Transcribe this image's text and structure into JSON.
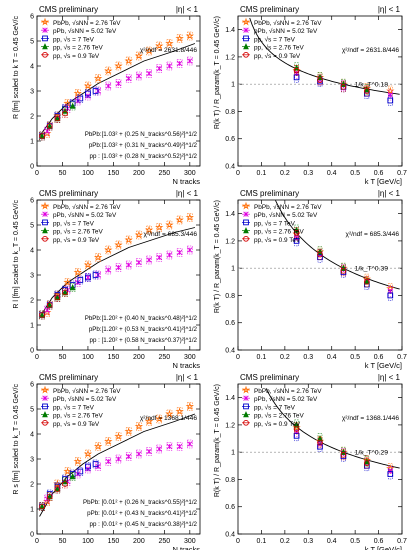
{
  "colors": {
    "PbPb": "#ff6a00",
    "pPb": "#e000e0",
    "pp7": "#0000cc",
    "pp276": "#007a00",
    "pp09": "#d40000",
    "fit": "#000000"
  },
  "chart_data": [
    {
      "type": "scatter",
      "panel": "top-left",
      "title": "CMS preliminary",
      "eta_label": "|η| < 1",
      "xlabel": "N_tracks",
      "ylabel": "R [fm] scaled to k_T = 0.45 GeV/c",
      "xlim": [
        0,
        320
      ],
      "ylim": [
        0,
        6
      ],
      "xticks": [
        0,
        50,
        100,
        150,
        200,
        250,
        300
      ],
      "yticks": [
        0,
        1,
        2,
        3,
        4,
        5,
        6
      ],
      "legend": [
        "PbPb, √sNN = 2.76 TeV",
        "pPb, √sNN = 5.02 TeV",
        "pp, √s = 7 TeV",
        "pp, √s = 2.76 TeV",
        "pp, √s = 0.9 TeV"
      ],
      "chi2": "χ²/ndf = 2631.8/446",
      "fit_lines": [
        "PbPb:[1.03² + (0.25 N_tracks^0.56)²]^1/2",
        "pPb:[1.03² + (0.31 N_tracks^0.49)²]^1/2",
        "pp : [1.03² + (0.28 N_tracks^0.52)²]^1/2"
      ],
      "series": [
        {
          "key": "PbPb",
          "x": [
            20,
            40,
            60,
            80,
            100,
            120,
            140,
            160,
            180,
            200,
            220,
            240,
            260,
            280,
            300
          ],
          "y": [
            1.3,
            2.0,
            2.5,
            2.9,
            3.2,
            3.5,
            3.8,
            4.0,
            4.2,
            4.4,
            4.6,
            4.8,
            4.9,
            5.1,
            5.2
          ]
        },
        {
          "key": "pPb",
          "x": [
            20,
            40,
            60,
            80,
            100,
            120,
            140,
            160,
            180,
            200,
            220,
            240,
            260,
            280,
            300
          ],
          "y": [
            1.4,
            1.9,
            2.3,
            2.6,
            2.8,
            3.0,
            3.2,
            3.3,
            3.5,
            3.6,
            3.7,
            3.9,
            4.0,
            4.1,
            4.2
          ]
        },
        {
          "key": "pp7",
          "x": [
            10,
            25,
            40,
            55,
            70,
            85,
            100,
            115
          ],
          "y": [
            1.2,
            1.6,
            2.0,
            2.3,
            2.5,
            2.7,
            2.9,
            3.0
          ]
        },
        {
          "key": "pp276",
          "x": [
            10,
            25,
            40,
            55,
            70
          ],
          "y": [
            1.2,
            1.6,
            1.9,
            2.2,
            2.4
          ]
        },
        {
          "key": "pp09",
          "x": [
            10,
            25,
            40,
            55
          ],
          "y": [
            1.2,
            1.6,
            1.9,
            2.1
          ]
        }
      ],
      "fit": {
        "x": [
          5,
          30,
          60,
          90,
          120,
          150,
          180,
          210,
          240,
          270,
          310
        ],
        "y": [
          1.2,
          1.9,
          2.5,
          2.9,
          3.3,
          3.6,
          3.9,
          4.2,
          4.4,
          4.6,
          4.9
        ]
      }
    },
    {
      "type": "scatter",
      "panel": "top-right",
      "title": "CMS preliminary",
      "eta_label": "|η| < 1",
      "xlabel": "k_T [GeV/c]",
      "ylabel": "R(k_T) / R_param(k_T = 0.45 GeV/c)",
      "xlim": [
        0,
        0.7
      ],
      "ylim": [
        0.4,
        1.5
      ],
      "xticks": [
        0,
        0.1,
        0.2,
        0.3,
        0.4,
        0.5,
        0.6,
        0.7
      ],
      "yticks": [
        0.4,
        0.6,
        0.8,
        1.0,
        1.2,
        1.4
      ],
      "legend": [
        "PbPb, √sNN = 2.76 TeV",
        "pPb, √sNN = 5.02 TeV",
        "pp, √s = 7 TeV",
        "pp, √s = 2.76 TeV",
        "pp, √s = 0.9 TeV"
      ],
      "chi2": "χ²/ndf = 2631.8/446",
      "kt_label": "1/k_T^0.18",
      "kt_exponent": 0.18,
      "series": [
        {
          "key": "PbPb",
          "x": [
            0.25,
            0.35,
            0.45,
            0.55,
            0.65
          ],
          "y": [
            1.1,
            1.05,
            1.0,
            0.97,
            0.95
          ]
        },
        {
          "key": "pPb",
          "x": [
            0.25,
            0.35,
            0.45,
            0.55,
            0.65
          ],
          "y": [
            1.08,
            1.03,
            0.99,
            0.95,
            0.92
          ]
        },
        {
          "key": "pp7",
          "x": [
            0.25,
            0.35,
            0.45,
            0.55,
            0.65
          ],
          "y": [
            1.05,
            1.02,
            0.98,
            0.93,
            0.88
          ]
        },
        {
          "key": "pp276",
          "x": [
            0.25,
            0.35,
            0.45,
            0.55
          ],
          "y": [
            1.12,
            1.05,
            1.0,
            0.96
          ]
        },
        {
          "key": "pp09",
          "x": [
            0.25,
            0.35,
            0.45,
            0.55
          ],
          "y": [
            1.1,
            1.03,
            0.98,
            0.95
          ]
        }
      ]
    },
    {
      "type": "scatter",
      "panel": "middle-left",
      "title": "CMS preliminary",
      "eta_label": "|η| < 1",
      "xlabel": "N_tracks",
      "ylabel": "R_l [fm] scaled to k_T = 0.45 GeV/c",
      "xlim": [
        0,
        320
      ],
      "ylim": [
        0,
        6
      ],
      "xticks": [
        0,
        50,
        100,
        150,
        200,
        250,
        300
      ],
      "yticks": [
        0,
        1,
        2,
        3,
        4,
        5,
        6
      ],
      "legend": [
        "PbPb, √sNN = 2.76 TeV",
        "pPb, √sNN = 5.02 TeV",
        "pp, √s = 7 TeV",
        "pp, √s = 2.76 TeV",
        "pp, √s = 0.9 TeV"
      ],
      "chi2": "χ²/ndf = 685.3/446",
      "fit_lines": [
        "PbPb:[1.20² + (0.40 N_tracks^0.48)²]^1/2",
        "pPb:[1.20² + (0.53 N_tracks^0.41)²]^1/2",
        "pp : [1.20² + (0.58 N_tracks^0.37)²]^1/2"
      ],
      "series": [
        {
          "key": "PbPb",
          "x": [
            20,
            40,
            60,
            80,
            100,
            120,
            140,
            160,
            180,
            200,
            220,
            240,
            260,
            280,
            300
          ],
          "y": [
            1.5,
            2.2,
            2.7,
            3.1,
            3.4,
            3.7,
            4.0,
            4.2,
            4.4,
            4.6,
            4.8,
            4.9,
            5.0,
            5.2,
            5.3
          ]
        },
        {
          "key": "pPb",
          "x": [
            20,
            40,
            60,
            80,
            100,
            120,
            140,
            160,
            180,
            200,
            220,
            240,
            260,
            280,
            300
          ],
          "y": [
            1.6,
            2.1,
            2.4,
            2.7,
            2.9,
            3.0,
            3.2,
            3.3,
            3.4,
            3.5,
            3.6,
            3.7,
            3.8,
            3.9,
            4.0
          ]
        },
        {
          "key": "pp7",
          "x": [
            10,
            25,
            40,
            55,
            70,
            85,
            100,
            115
          ],
          "y": [
            1.4,
            1.8,
            2.2,
            2.4,
            2.6,
            2.8,
            2.9,
            3.0
          ]
        },
        {
          "key": "pp276",
          "x": [
            10,
            25,
            40,
            55,
            70
          ],
          "y": [
            1.4,
            1.8,
            2.1,
            2.3,
            2.5
          ]
        },
        {
          "key": "pp09",
          "x": [
            10,
            25,
            40,
            55
          ],
          "y": [
            1.4,
            1.8,
            2.1,
            2.3
          ]
        }
      ],
      "fit": {
        "x": [
          5,
          30,
          60,
          90,
          120,
          150,
          180,
          210,
          240,
          270,
          310
        ],
        "y": [
          1.3,
          2.1,
          2.7,
          3.1,
          3.5,
          3.8,
          4.1,
          4.3,
          4.5,
          4.7,
          4.9
        ]
      }
    },
    {
      "type": "scatter",
      "panel": "middle-right",
      "title": "CMS preliminary",
      "eta_label": "|η| < 1",
      "xlabel": "k_T [GeV/c]",
      "ylabel": "R(k_T) / R_param(k_T = 0.45 GeV/c)",
      "xlim": [
        0,
        0.7
      ],
      "ylim": [
        0.4,
        1.5
      ],
      "xticks": [
        0,
        0.1,
        0.2,
        0.3,
        0.4,
        0.5,
        0.6,
        0.7
      ],
      "yticks": [
        0.4,
        0.6,
        0.8,
        1.0,
        1.2,
        1.4
      ],
      "legend": [
        "PbPb, √sNN = 2.76 TeV",
        "pPb, √sNN = 5.02 TeV",
        "pp, √s = 7 TeV",
        "pp, √s = 2.76 TeV",
        "pp, √s = 0.9 TeV"
      ],
      "chi2": "χ²/ndf = 685.3/446",
      "kt_label": "1/k_T^0.39",
      "kt_exponent": 0.39,
      "series": [
        {
          "key": "PbPb",
          "x": [
            0.25,
            0.35,
            0.45,
            0.55,
            0.65
          ],
          "y": [
            1.25,
            1.12,
            1.0,
            0.92,
            0.85
          ]
        },
        {
          "key": "pPb",
          "x": [
            0.25,
            0.35,
            0.45,
            0.55,
            0.65
          ],
          "y": [
            1.22,
            1.1,
            0.99,
            0.9,
            0.83
          ]
        },
        {
          "key": "pp7",
          "x": [
            0.25,
            0.35,
            0.45,
            0.55,
            0.65
          ],
          "y": [
            1.2,
            1.08,
            0.97,
            0.88,
            0.8
          ]
        },
        {
          "key": "pp276",
          "x": [
            0.25,
            0.35,
            0.45,
            0.55
          ],
          "y": [
            1.28,
            1.12,
            1.0,
            0.9
          ]
        },
        {
          "key": "pp09",
          "x": [
            0.25,
            0.35,
            0.45,
            0.55
          ],
          "y": [
            1.26,
            1.1,
            0.98,
            0.9
          ]
        }
      ]
    },
    {
      "type": "scatter",
      "panel": "bottom-left",
      "title": "CMS preliminary",
      "eta_label": "|η| < 1",
      "xlabel": "N_tracks",
      "ylabel": "R_s [fm] scaled to k_T = 0.45 GeV/c",
      "xlim": [
        0,
        320
      ],
      "ylim": [
        0,
        6
      ],
      "xticks": [
        0,
        50,
        100,
        150,
        200,
        250,
        300
      ],
      "yticks": [
        0,
        1,
        2,
        3,
        4,
        5,
        6
      ],
      "legend": [
        "PbPb, √sNN = 2.76 TeV",
        "pPb, √sNN = 5.02 TeV",
        "pp, √s = 7 TeV",
        "pp, √s = 2.76 TeV",
        "pp, √s = 0.9 TeV"
      ],
      "chi2": "χ²/ndf = 1368.1/446",
      "fit_lines": [
        "PbPb: [0.01² + (0.26 N_tracks^0.55)²]^1/2",
        "pPb: [0.01² + (0.43 N_tracks^0.41)²]^1/2",
        "pp : [0.01² + (0.45 N_tracks^0.38)²]^1/2"
      ],
      "series": [
        {
          "key": "PbPb",
          "x": [
            20,
            40,
            60,
            80,
            100,
            120,
            140,
            160,
            180,
            200,
            220,
            240,
            260,
            280,
            300
          ],
          "y": [
            1.3,
            2.0,
            2.5,
            2.9,
            3.2,
            3.5,
            3.7,
            3.9,
            4.1,
            4.3,
            4.5,
            4.6,
            4.8,
            4.9,
            5.1
          ]
        },
        {
          "key": "pPb",
          "x": [
            20,
            40,
            60,
            80,
            100,
            120,
            140,
            160,
            180,
            200,
            220,
            240,
            260,
            280,
            300
          ],
          "y": [
            1.4,
            1.8,
            2.1,
            2.4,
            2.6,
            2.7,
            2.9,
            3.0,
            3.1,
            3.2,
            3.3,
            3.4,
            3.5,
            3.5,
            3.6
          ]
        },
        {
          "key": "pp7",
          "x": [
            10,
            25,
            40,
            55,
            70,
            85,
            100,
            115
          ],
          "y": [
            1.1,
            1.6,
            1.9,
            2.2,
            2.4,
            2.5,
            2.7,
            2.8
          ]
        },
        {
          "key": "pp276",
          "x": [
            10,
            25,
            40,
            55,
            70
          ],
          "y": [
            1.1,
            1.5,
            1.8,
            2.1,
            2.3
          ]
        },
        {
          "key": "pp09",
          "x": [
            10,
            25,
            40,
            55
          ],
          "y": [
            1.1,
            1.5,
            1.8,
            2.0
          ]
        }
      ],
      "fit": {
        "x": [
          5,
          30,
          60,
          90,
          120,
          150,
          180,
          210,
          240,
          270,
          310
        ],
        "y": [
          0.7,
          1.6,
          2.3,
          2.8,
          3.2,
          3.5,
          3.8,
          4.1,
          4.3,
          4.5,
          4.8
        ]
      }
    },
    {
      "type": "scatter",
      "panel": "bottom-right",
      "title": "CMS preliminary",
      "eta_label": "|η| < 1",
      "xlabel": "k_T [GeV/c]",
      "ylabel": "R(k_T) / R_param(k_T = 0.45 GeV/c)",
      "xlim": [
        0,
        0.7
      ],
      "ylim": [
        0.4,
        1.5
      ],
      "xticks": [
        0,
        0.1,
        0.2,
        0.3,
        0.4,
        0.5,
        0.6,
        0.7
      ],
      "yticks": [
        0.4,
        0.6,
        0.8,
        1.0,
        1.2,
        1.4
      ],
      "legend": [
        "PbPb, √sNN = 2.76 TeV",
        "pPb, √sNN = 5.02 TeV",
        "pp, √s = 7 TeV",
        "pp, √s = 2.76 TeV",
        "pp, √s = 0.9 TeV"
      ],
      "chi2": "χ²/ndf = 1368.1/446",
      "kt_label": "1/k_T^0.29",
      "kt_exponent": 0.29,
      "series": [
        {
          "key": "PbPb",
          "x": [
            0.25,
            0.35,
            0.45,
            0.55,
            0.65
          ],
          "y": [
            1.18,
            1.08,
            1.0,
            0.94,
            0.88
          ]
        },
        {
          "key": "pPb",
          "x": [
            0.25,
            0.35,
            0.45,
            0.55,
            0.65
          ],
          "y": [
            1.15,
            1.06,
            0.99,
            0.92,
            0.86
          ]
        },
        {
          "key": "pp7",
          "x": [
            0.25,
            0.35,
            0.45,
            0.55,
            0.65
          ],
          "y": [
            1.12,
            1.04,
            0.97,
            0.9,
            0.84
          ]
        },
        {
          "key": "pp276",
          "x": [
            0.25,
            0.35,
            0.45,
            0.55
          ],
          "y": [
            1.2,
            1.1,
            1.0,
            0.93
          ]
        },
        {
          "key": "pp09",
          "x": [
            0.25,
            0.35,
            0.45,
            0.55
          ],
          "y": [
            1.17,
            1.07,
            0.98,
            0.92
          ]
        }
      ]
    }
  ]
}
